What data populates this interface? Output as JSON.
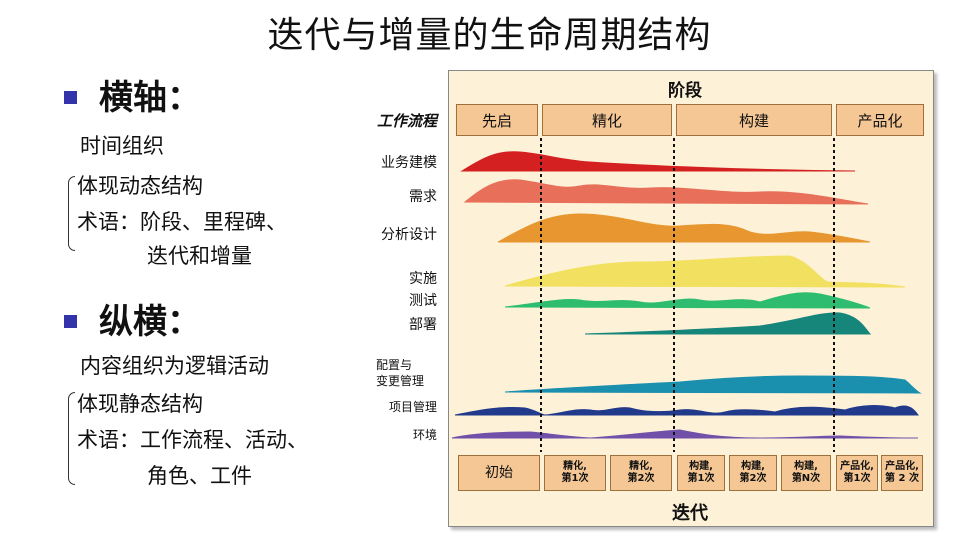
{
  "title": "迭代与增量的生命周期结构",
  "horizontal": {
    "heading": "横轴：",
    "line1": "时间组织",
    "line2": "体现动态结构",
    "line3": "术语：阶段、里程碑、",
    "line4": "迭代和增量"
  },
  "vertical": {
    "heading": "纵横：",
    "line1": "内容组织为逻辑活动",
    "line2": "体现静态结构",
    "line3": "术语：工作流程、活动、",
    "line4": "角色、工件"
  },
  "diagram": {
    "phases_title": "阶段",
    "workflow_label": "工作流程",
    "phases": [
      "先启",
      "精化",
      "构建",
      "产品化"
    ],
    "disciplines": [
      "业务建模",
      "需求",
      "分析设计",
      "实施",
      "测试",
      "部署",
      "配置与",
      "变更管理",
      "项目管理",
      "环境"
    ],
    "iterations": [
      "初始",
      "精化,\n第1次",
      "精化,\n第2次",
      "构建,\n第1次",
      "构建,\n第2次",
      "构建,\n第N次",
      "产品化,\n第1次",
      "产品化,\n第 2 次"
    ],
    "iterations_title": "迭代",
    "colors": {
      "business": "#d42020",
      "requirements": "#e8705a",
      "analysis": "#e8962f",
      "implementation": "#f2e060",
      "test": "#2ebd70",
      "deployment": "#16857a",
      "config": "#1a8fae",
      "project": "#223a8c",
      "environment": "#7050a8"
    }
  }
}
